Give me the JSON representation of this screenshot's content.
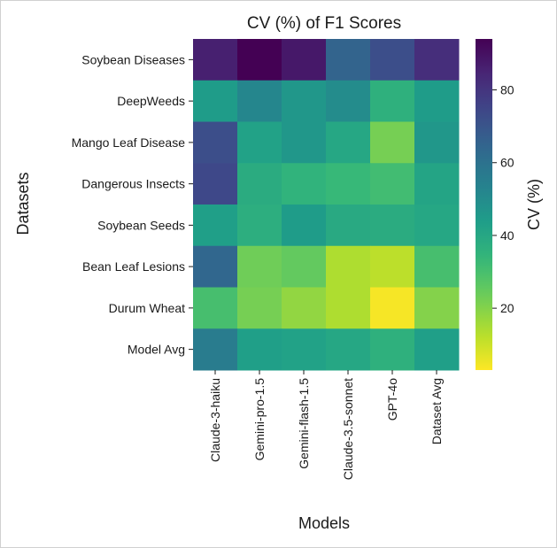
{
  "chart_data": {
    "type": "heatmap",
    "title": "CV (%) of F1 Scores",
    "xlabel": "Models",
    "ylabel": "Datasets",
    "colorbar_label": "CV (%)",
    "colormap": "viridis_r",
    "vmin": 3,
    "vmax": 94,
    "colorbar_ticks": [
      20,
      40,
      60,
      80
    ],
    "x_categories": [
      "Claude-3-haiku",
      "Gemini-pro-1.5",
      "Gemini-flash-1.5",
      "Claude-3.5-sonnet",
      "GPT-4o",
      "Dataset Avg"
    ],
    "y_categories": [
      "Soybean Diseases",
      "DeepWeeds",
      "Mango Leaf Disease",
      "Dangerous Insects",
      "Soybean Seeds",
      "Bean Leaf Lesions",
      "Durum Wheat",
      "Model Avg"
    ],
    "values": [
      [
        86,
        94,
        88,
        65,
        72,
        82
      ],
      [
        44,
        52,
        46,
        50,
        36,
        44
      ],
      [
        72,
        42,
        46,
        40,
        22,
        46
      ],
      [
        74,
        38,
        35,
        33,
        31,
        41
      ],
      [
        43,
        37,
        44,
        39,
        38,
        40
      ],
      [
        64,
        23,
        25,
        14,
        12,
        30
      ],
      [
        30,
        22,
        18,
        14,
        4,
        20
      ],
      [
        56,
        43,
        42,
        40,
        36,
        43
      ]
    ]
  }
}
